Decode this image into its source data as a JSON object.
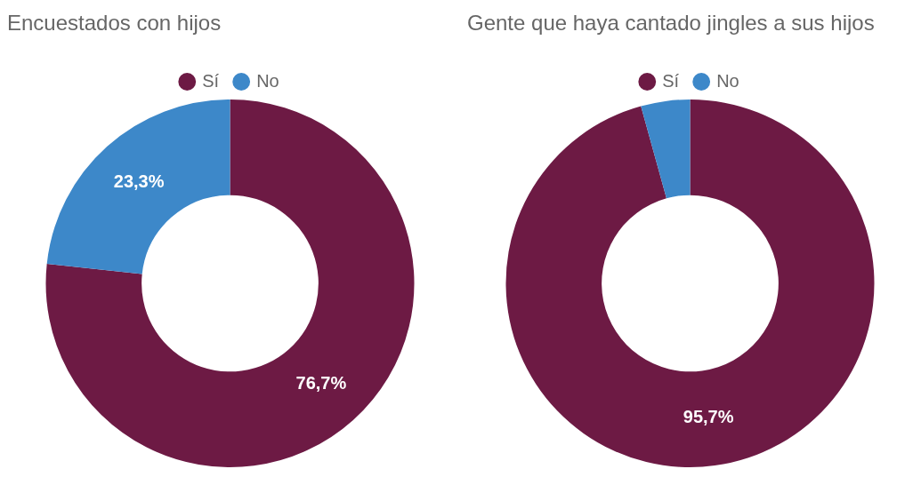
{
  "chart_data": [
    {
      "type": "donut",
      "title": "Encuestados con hijos",
      "categories": [
        "Sí",
        "No"
      ],
      "values": [
        76.7,
        23.3
      ],
      "colors": [
        "#6d1a44",
        "#3d88c9"
      ],
      "value_labels": [
        "76,7%",
        "23,3%"
      ],
      "legend": "top"
    },
    {
      "type": "donut",
      "title": "Gente que haya cantado jingles a sus hijos",
      "categories": [
        "Sí",
        "No"
      ],
      "values": [
        95.7,
        4.3
      ],
      "colors": [
        "#6d1a44",
        "#3d88c9"
      ],
      "value_labels": [
        "95,7%",
        null
      ],
      "legend": "top"
    }
  ]
}
